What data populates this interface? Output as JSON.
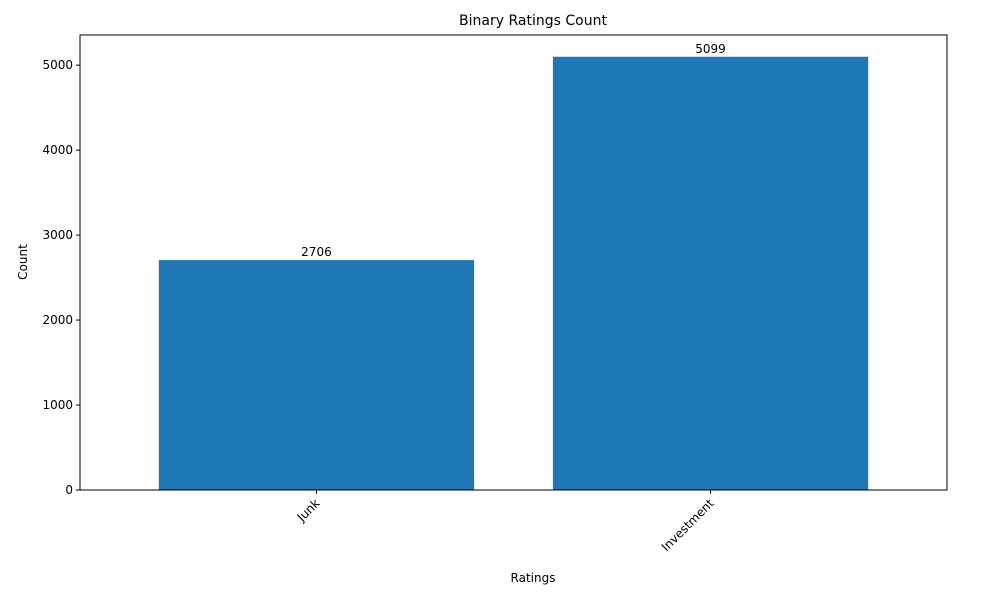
{
  "chart_data": {
    "type": "bar",
    "title": "Binary Ratings Count",
    "xlabel": "Ratings",
    "ylabel": "Count",
    "categories": [
      "Junk",
      "Investment"
    ],
    "values": [
      2706,
      5099
    ],
    "data_labels": [
      "2706",
      "5099"
    ],
    "ylim": [
      0,
      5355
    ],
    "yticks": [
      0,
      1000,
      2000,
      3000,
      4000,
      5000
    ],
    "ytick_labels": [
      "0",
      "1000",
      "2000",
      "3000",
      "4000",
      "5000"
    ],
    "xtick_rotation": "45 degrees",
    "bar_color": "#1f77b4",
    "grid": false,
    "legend": "none"
  }
}
